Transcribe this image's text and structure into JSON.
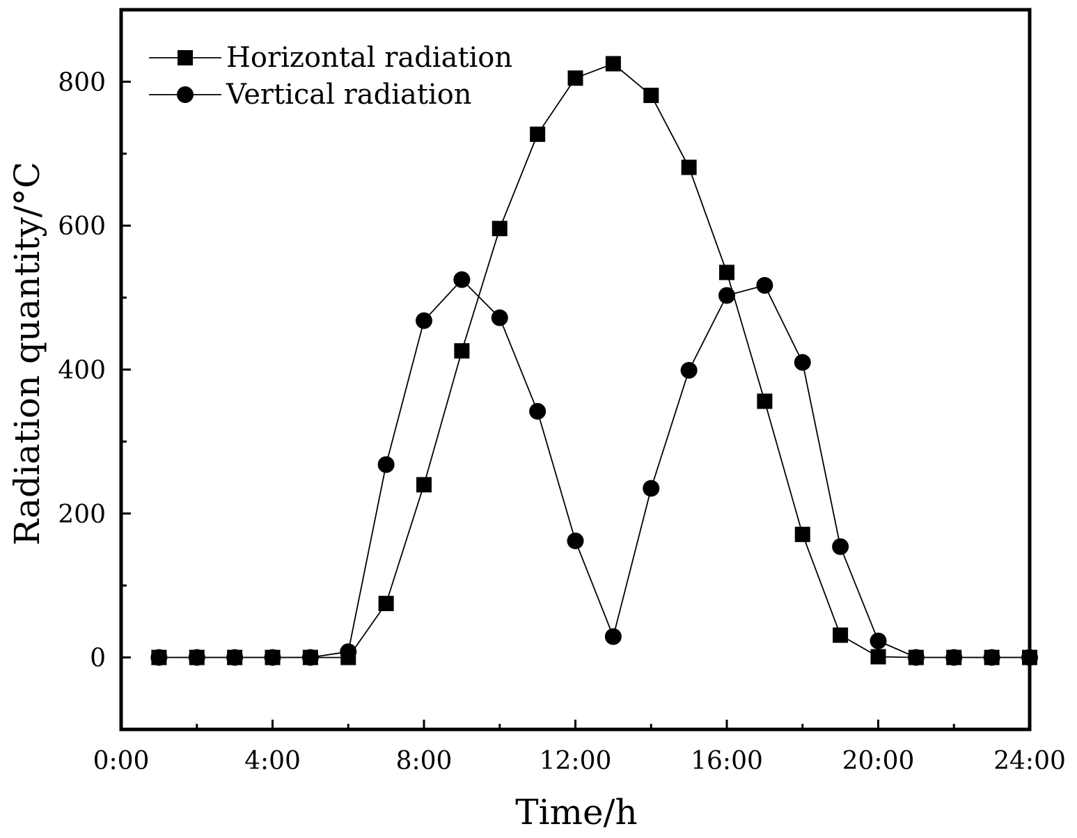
{
  "chart_data": {
    "type": "line",
    "title": "",
    "xlabel": "Time/h",
    "ylabel": "Radiation quantity/°C",
    "xlim": [
      0,
      24
    ],
    "ylim": [
      -100,
      900
    ],
    "x_ticks": [
      0,
      4,
      8,
      12,
      16,
      20,
      24
    ],
    "x_tick_labels": [
      "0:00",
      "4:00",
      "8:00",
      "12:00",
      "16:00",
      "20:00",
      "24:00"
    ],
    "y_ticks": [
      0,
      200,
      400,
      600,
      800
    ],
    "y_tick_labels": [
      "0",
      "200",
      "400",
      "600",
      "800"
    ],
    "grid": false,
    "legend_position": "top-left",
    "x": [
      1,
      2,
      3,
      4,
      5,
      6,
      7,
      8,
      9,
      10,
      11,
      12,
      13,
      14,
      15,
      16,
      17,
      18,
      19,
      20,
      21,
      22,
      23,
      24
    ],
    "series": [
      {
        "name": "Horizontal radiation",
        "marker": "square",
        "color": "#000000",
        "values": [
          0,
          0,
          0,
          0,
          0,
          0,
          75,
          240,
          426,
          596,
          727,
          805,
          825,
          781,
          681,
          535,
          356,
          171,
          31,
          1,
          0,
          0,
          0,
          0
        ]
      },
      {
        "name": "Vertical radiation",
        "marker": "circle",
        "color": "#000000",
        "values": [
          0,
          0,
          0,
          0,
          0,
          8,
          268,
          468,
          525,
          472,
          342,
          162,
          29,
          235,
          399,
          503,
          517,
          410,
          154,
          23,
          0,
          0,
          0,
          0
        ]
      }
    ]
  }
}
